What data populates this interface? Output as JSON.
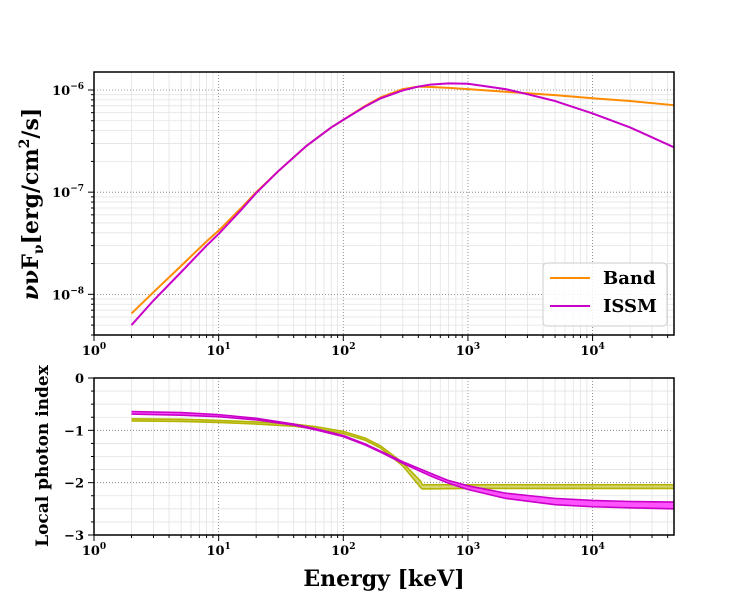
{
  "chart_data": [
    {
      "type": "line",
      "panel": "top",
      "title": "",
      "xlabel": "",
      "ylabel": "νFν [erg/cm²/s]",
      "ylabel_main": "νF",
      "ylabel_sub": "ν",
      "ylabel_unit": "[erg/cm",
      "ylabel_sup": "2",
      "ylabel_tail": "/s]",
      "xscale": "log",
      "yscale": "log",
      "xlim": [
        1,
        45000
      ],
      "ylim": [
        4e-09,
        1.5e-06
      ],
      "grid": true,
      "legend_position": "lower-right",
      "x_ticks": [
        {
          "value": 1,
          "base": "10",
          "exp": "0"
        },
        {
          "value": 10,
          "base": "10",
          "exp": "1"
        },
        {
          "value": 100,
          "base": "10",
          "exp": "2"
        },
        {
          "value": 1000,
          "base": "10",
          "exp": "3"
        },
        {
          "value": 10000,
          "base": "10",
          "exp": "4"
        }
      ],
      "y_ticks": [
        {
          "value": 1e-08,
          "base": "10",
          "exp": "−8"
        },
        {
          "value": 1e-07,
          "base": "10",
          "exp": "−7"
        },
        {
          "value": 1e-06,
          "base": "10",
          "exp": "−6"
        }
      ],
      "series": [
        {
          "name": "Band",
          "color": "#ff8c00",
          "x": [
            2,
            3,
            5,
            8,
            10,
            15,
            20,
            30,
            50,
            80,
            100,
            150,
            200,
            300,
            400,
            500,
            700,
            1000,
            2000,
            3000,
            5000,
            10000,
            20000,
            45000
          ],
          "y": [
            6.5e-09,
            1.05e-08,
            1.9e-08,
            3.3e-08,
            4.2e-08,
            6.9e-08,
            1e-07,
            1.6e-07,
            2.8e-07,
            4.3e-07,
            5.1e-07,
            7e-07,
            8.5e-07,
            1.02e-06,
            1.08e-06,
            1.07e-06,
            1.05e-06,
            1.02e-06,
            9.6e-07,
            9.3e-07,
            8.9e-07,
            8.3e-07,
            7.8e-07,
            7.1e-07
          ]
        },
        {
          "name": "ISSM",
          "color": "#c800c8",
          "x": [
            2,
            3,
            5,
            8,
            10,
            15,
            20,
            30,
            50,
            80,
            100,
            150,
            200,
            300,
            400,
            500,
            700,
            1000,
            2000,
            3000,
            5000,
            10000,
            20000,
            45000
          ],
          "y": [
            5e-09,
            8.7e-09,
            1.65e-08,
            3e-08,
            3.9e-08,
            6.6e-08,
            9.8e-08,
            1.6e-07,
            2.8e-07,
            4.3e-07,
            5.1e-07,
            6.9e-07,
            8.3e-07,
            9.9e-07,
            1.08e-06,
            1.13e-06,
            1.16e-06,
            1.15e-06,
            1.02e-06,
            9.1e-07,
            7.8e-07,
            5.9e-07,
            4.3e-07,
            2.75e-07
          ]
        }
      ]
    },
    {
      "type": "area",
      "panel": "bottom",
      "title": "",
      "xlabel": "Energy [keV]",
      "ylabel": "Local photon index",
      "xscale": "log",
      "yscale": "linear",
      "xlim": [
        1,
        45000
      ],
      "ylim": [
        -3,
        0
      ],
      "grid": true,
      "x_ticks": [
        {
          "value": 1,
          "base": "10",
          "exp": "0"
        },
        {
          "value": 10,
          "base": "10",
          "exp": "1"
        },
        {
          "value": 100,
          "base": "10",
          "exp": "2"
        },
        {
          "value": 1000,
          "base": "10",
          "exp": "3"
        },
        {
          "value": 10000,
          "base": "10",
          "exp": "4"
        }
      ],
      "y_ticks": [
        {
          "value": 0,
          "label": "0"
        },
        {
          "value": -1,
          "label": "−1"
        },
        {
          "value": -2,
          "label": "−2"
        },
        {
          "value": -3,
          "label": "−3"
        }
      ],
      "series": [
        {
          "name": "Band",
          "color": "#b4b400",
          "x": [
            2,
            5,
            10,
            20,
            40,
            60,
            100,
            150,
            200,
            300,
            420,
            430,
            1000,
            10000,
            45000
          ],
          "upper": [
            -0.78,
            -0.79,
            -0.81,
            -0.84,
            -0.88,
            -0.93,
            -1.02,
            -1.15,
            -1.3,
            -1.62,
            -1.98,
            -2.04,
            -2.04,
            -2.04,
            -2.04
          ],
          "lower": [
            -0.82,
            -0.83,
            -0.85,
            -0.88,
            -0.92,
            -0.97,
            -1.06,
            -1.19,
            -1.34,
            -1.68,
            -2.1,
            -2.12,
            -2.11,
            -2.11,
            -2.11
          ]
        },
        {
          "name": "ISSM",
          "color": "#c800c8",
          "fill": "#ff40ff",
          "x": [
            2,
            5,
            10,
            20,
            40,
            60,
            100,
            150,
            200,
            300,
            500,
            700,
            1000,
            2000,
            5000,
            10000,
            20000,
            45000
          ],
          "upper": [
            -0.64,
            -0.66,
            -0.7,
            -0.77,
            -0.88,
            -0.97,
            -1.1,
            -1.26,
            -1.4,
            -1.6,
            -1.82,
            -1.96,
            -2.06,
            -2.2,
            -2.3,
            -2.34,
            -2.36,
            -2.37
          ],
          "lower": [
            -0.69,
            -0.71,
            -0.74,
            -0.8,
            -0.9,
            -0.99,
            -1.12,
            -1.28,
            -1.42,
            -1.63,
            -1.87,
            -2.01,
            -2.13,
            -2.3,
            -2.42,
            -2.46,
            -2.48,
            -2.5
          ]
        }
      ]
    }
  ]
}
